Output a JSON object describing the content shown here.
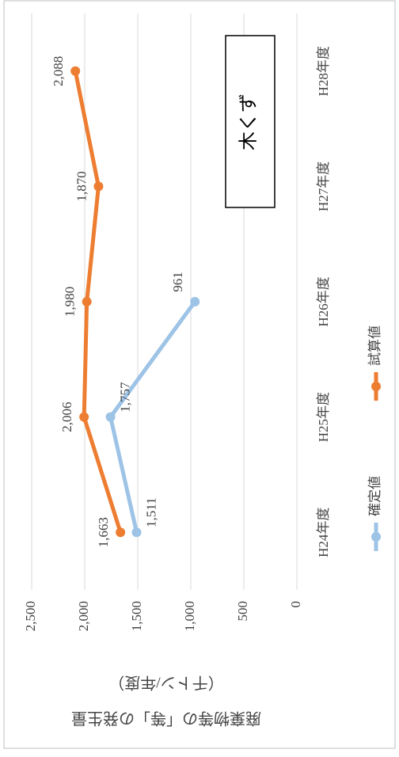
{
  "chart_data": {
    "type": "line",
    "y_axis_label": [
      "廃棄物等の「等」の発生量",
      "（千トン/年度）"
    ],
    "annotation": "木くず",
    "categories": [
      "H24年度",
      "H25年度",
      "H26年度",
      "H27年度",
      "H28年度"
    ],
    "series": [
      {
        "name": "確定値",
        "color": "#9dc3e6",
        "values": [
          1511,
          1757,
          961,
          null,
          null
        ],
        "value_labels": [
          "1,511",
          "1,757",
          "961",
          null,
          null
        ]
      },
      {
        "name": "試算値",
        "color": "#ed7d31",
        "values": [
          1663,
          2006,
          1980,
          1870,
          2088
        ],
        "value_labels": [
          "1,663",
          "2,006",
          "1,980",
          "1,870",
          "2,088"
        ]
      }
    ],
    "ylim": [
      0,
      2500
    ],
    "yticks": [
      0,
      500,
      {
        "value": 1000,
        "label": "1,000"
      },
      {
        "value": 1500,
        "label": "1,500"
      },
      {
        "value": 2000,
        "label": "2,000"
      },
      {
        "value": 2500,
        "label": "2,500"
      }
    ],
    "grid": true,
    "legend": "bottom"
  }
}
